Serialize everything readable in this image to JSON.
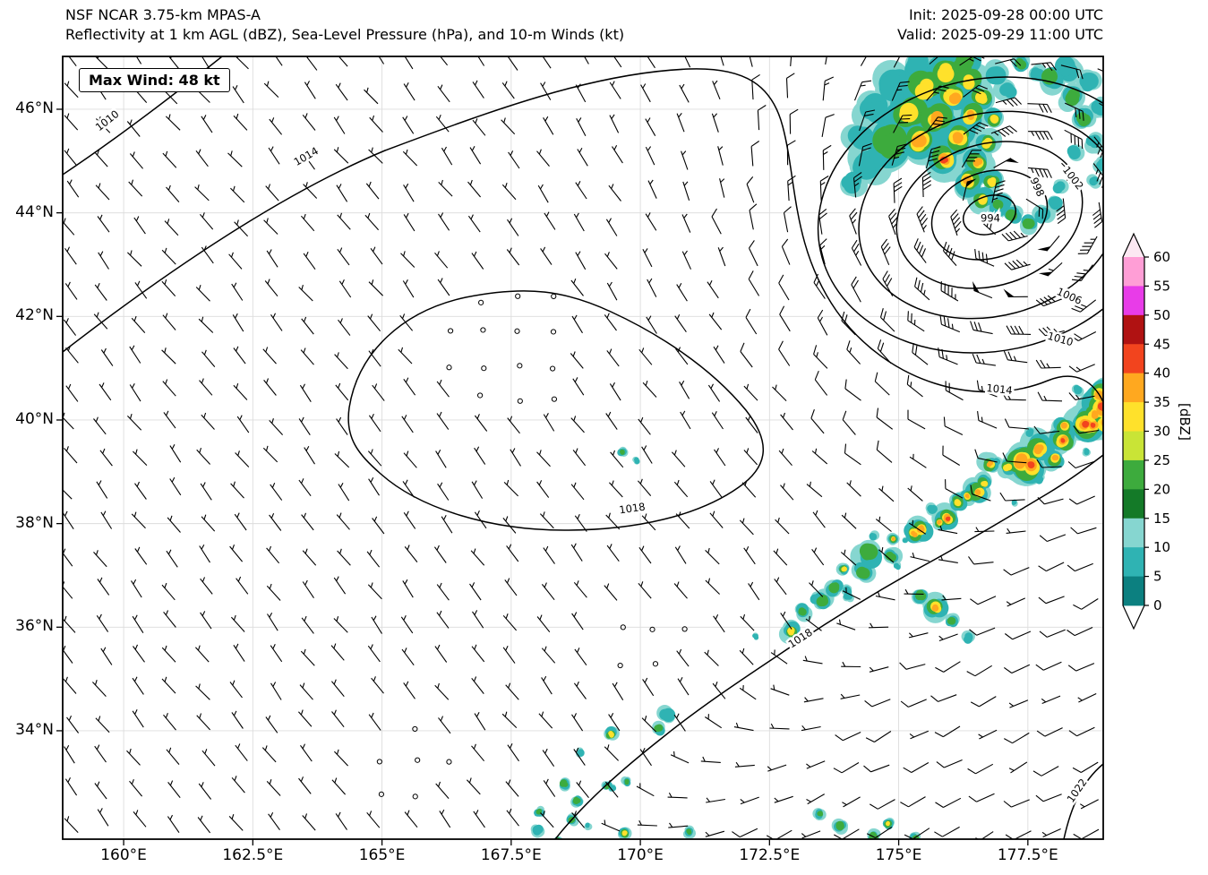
{
  "header": {
    "model_line": "NSF NCAR 3.75-km MPAS-A",
    "fields_line": "Reflectivity at 1 km AGL (dBZ), Sea-Level Pressure (hPa), and 10-m Winds (kt)",
    "init_line": "Init: 2025-09-28 00:00 UTC",
    "valid_line": "Valid: 2025-09-29 11:00 UTC"
  },
  "map": {
    "max_wind_label": "Max Wind: 48 kt",
    "x_tick_labels": [
      "160°E",
      "162.5°E",
      "165°E",
      "167.5°E",
      "170°E",
      "172.5°E",
      "175°E",
      "177.5°E"
    ],
    "y_tick_labels": [
      "46°N",
      "44°N",
      "42°N",
      "40°N",
      "38°N",
      "36°N",
      "34°N"
    ],
    "isobar_labels": [
      "1010",
      "1014",
      "994",
      "998",
      "1002",
      "1006",
      "1010",
      "1014",
      "1018",
      "1018",
      "1022"
    ]
  },
  "colorbar": {
    "unit_label": "[dBZ]",
    "tick_labels": [
      "60",
      "55",
      "50",
      "45",
      "40",
      "35",
      "30",
      "25",
      "20",
      "15",
      "10",
      "5",
      "0"
    ],
    "colors": [
      "#0c8080",
      "#2fb3b3",
      "#86d6d0",
      "#147a28",
      "#3dab3d",
      "#c9e436",
      "#ffe12b",
      "#ffa81f",
      "#f2441e",
      "#b01212",
      "#e83ce8",
      "#ff9ed6"
    ],
    "under_color": "#ffffff",
    "over_color": "#fce8f2"
  },
  "chart_data": {
    "type": "weather-map",
    "model": "NSF NCAR 3.75-km MPAS-A",
    "fields": [
      "Reflectivity at 1 km AGL (dBZ)",
      "Sea-Level Pressure (hPa)",
      "10-m Winds (kt)"
    ],
    "init_utc": "2025-09-28 00:00 UTC",
    "valid_utc": "2025-09-29 11:00 UTC",
    "max_wind_kt": 48,
    "lon_ticks_deg_e": [
      160,
      162.5,
      165,
      167.5,
      170,
      172.5,
      175,
      177.5
    ],
    "lat_ticks_deg_n": [
      46,
      44,
      42,
      40,
      38,
      36,
      34
    ],
    "lon_range_deg_e": [
      158.8,
      179.0
    ],
    "lat_range_deg_n": [
      31.9,
      47.0
    ],
    "slp_isobars_hpa": [
      994,
      998,
      1002,
      1006,
      1010,
      1014,
      1018,
      1022
    ],
    "low_center": {
      "lon_e": 177.3,
      "lat_n": 44.1,
      "slp_hpa": 994
    },
    "high_center": {
      "lon_e": 167.6,
      "lat_n": 41.4,
      "slp_hpa": 1018
    },
    "reflectivity_levels_dbz": [
      0,
      5,
      10,
      15,
      20,
      25,
      30,
      35,
      40,
      45,
      50,
      55,
      60
    ],
    "colorbar_unit": "dBZ",
    "grid": true,
    "legend_position": "right-colorbar",
    "features": [
      "Occluded low near 177.3°E, 44.1°N with comma-head reflectivity up to 40+ dBZ wrapping into a hook",
      "Convective rainband along a trough from about 168.5°E, 32°N to 179°E, 41.5°N with cores above 45 dBZ",
      "Closed 1018 hPa high over the central domain with calm winds (open circles)",
      "Grid of 10-m wind barbs, strongest (~48 kt) around the low center"
    ]
  }
}
